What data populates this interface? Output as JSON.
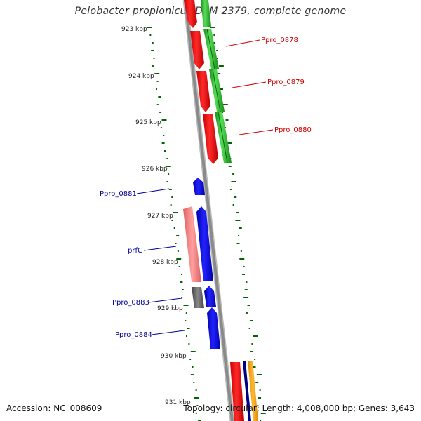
{
  "title": "Pelobacter propionicus DSM 2379, complete genome",
  "footer": {
    "accession": "Accession: NC_008609",
    "topology": "Topology: circular; Length: 4,008,000 bp; Genes: 3,643"
  },
  "ticks": [
    "923 kbp",
    "924 kbp",
    "925 kbp",
    "926 kbp",
    "927 kbp",
    "928 kbp",
    "929 kbp",
    "930 kbp",
    "931 kbp"
  ],
  "gene_labels": {
    "right": [
      "Ppro_0878",
      "Ppro_0879",
      "Ppro_0880"
    ],
    "left": [
      "Ppro_0881",
      "prfC",
      "Ppro_0883",
      "Ppro_0884"
    ]
  },
  "colors": {
    "forward_cds": "#ff0000",
    "forward_gene": "#33bb33",
    "reverse_cds": "#0000ff",
    "reverse_gene": "#f08080",
    "pseudo": "#666666",
    "backbone": "#888888",
    "gc_dots": "#006600",
    "orange": "#ffa500",
    "navy": "#000080"
  }
}
